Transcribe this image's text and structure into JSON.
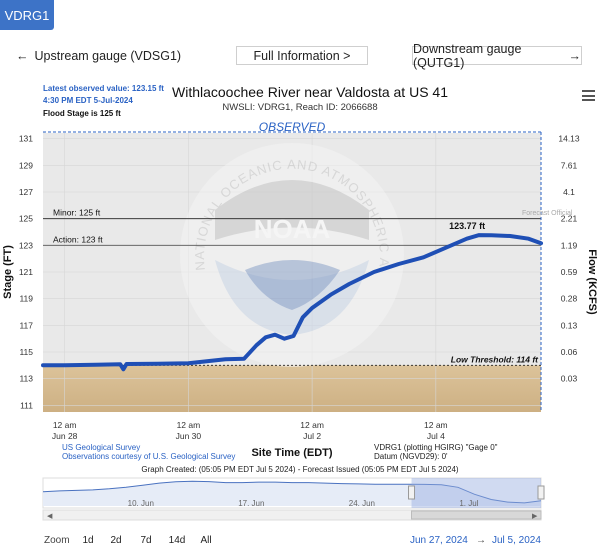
{
  "tab": {
    "label": "VDRG1"
  },
  "nav": {
    "upstream_arrow": "←",
    "upstream_label": "Upstream gauge (VDSG1)",
    "full_info_label": "Full Information >",
    "downstream_label": "Downstream gauge (QUTG1)",
    "downstream_arrow": "→"
  },
  "info": {
    "latest": "Latest observed value: 123.15 ft",
    "latest_time": "4:30 PM EDT 5-Jul-2024",
    "flood_stage": "Flood Stage is 125 ft"
  },
  "header": {
    "title": "Withlacoochee River near Valdosta at US 41",
    "subtitle": "NWSLI: VDRG1, Reach ID: 2066688"
  },
  "chart_data": {
    "type": "line",
    "section_label": "OBSERVED",
    "ylabel_left": "Stage (FT)",
    "ylabel_right": "Flow (KCFS)",
    "xlabel": "Site Time (EDT)",
    "ylim": [
      110.5,
      131.5
    ],
    "left_ticks": [
      "131",
      "129",
      "127",
      "125",
      "123",
      "121",
      "119",
      "117",
      "115",
      "113",
      "111"
    ],
    "right_ticks": [
      "14.13",
      "7.61",
      "4.1",
      "2.21",
      "1.19",
      "0.59",
      "0.28",
      "0.13",
      "0.06",
      "0.03"
    ],
    "right_tick_stage": [
      131,
      129,
      127,
      125,
      123,
      121,
      119,
      117,
      115,
      113
    ],
    "x_ticks": [
      {
        "top": "12 am",
        "bottom": "Jun 28",
        "day": 0
      },
      {
        "top": "12 am",
        "bottom": "Jun 30",
        "day": 2
      },
      {
        "top": "12 am",
        "bottom": "Jul 2",
        "day": 4
      },
      {
        "top": "12 am",
        "bottom": "Jul 4",
        "day": 6
      }
    ],
    "xlim_days": [
      -0.35,
      7.7
    ],
    "thresholds": [
      {
        "label": "Minor: 125 ft",
        "value": 125,
        "color": "#222222"
      },
      {
        "label": "Action: 123 ft",
        "value": 123,
        "color": "#555555"
      },
      {
        "label": "Low Threshold: 114 ft",
        "value": 114,
        "color": "#222222"
      }
    ],
    "peak_label": "123.77 ft",
    "peak": [
      6.7,
      123.77
    ],
    "right_corner_text": "Forecast Official",
    "watermark": "NATIONAL OCEANIC AND ATMOSPHERIC ADMINISTRATION · U.S. DEPARTMENT OF COMMERCE",
    "watermark_logo": "NOAA",
    "series": [
      {
        "name": "Observed stage",
        "color": "#1f4fb5",
        "points": [
          [
            -0.35,
            114.0
          ],
          [
            0.0,
            114.0
          ],
          [
            0.5,
            114.05
          ],
          [
            0.9,
            114.08
          ],
          [
            0.95,
            113.7
          ],
          [
            1.0,
            114.1
          ],
          [
            1.5,
            114.12
          ],
          [
            2.0,
            114.15
          ],
          [
            2.3,
            114.3
          ],
          [
            2.6,
            114.45
          ],
          [
            2.9,
            114.5
          ],
          [
            3.1,
            115.5
          ],
          [
            3.25,
            116.1
          ],
          [
            3.4,
            116.3
          ],
          [
            3.55,
            116.0
          ],
          [
            3.7,
            116.2
          ],
          [
            3.85,
            117.6
          ],
          [
            4.0,
            118.3
          ],
          [
            4.3,
            119.3
          ],
          [
            4.6,
            120.1
          ],
          [
            5.0,
            121.0
          ],
          [
            5.4,
            121.6
          ],
          [
            5.8,
            122.1
          ],
          [
            6.2,
            122.9
          ],
          [
            6.5,
            123.5
          ],
          [
            6.7,
            123.77
          ],
          [
            6.9,
            123.75
          ],
          [
            7.2,
            123.7
          ],
          [
            7.5,
            123.5
          ],
          [
            7.7,
            123.15
          ]
        ]
      }
    ]
  },
  "footer": {
    "usgs_line1": "US Geological Survey",
    "usgs_line2": "Observations courtesy of U.S. Geological Survey",
    "gauge_info_line1": "VDRG1 (plotting HGIRG) \"Gage 0\"",
    "gauge_info_line2": "Datum (NGVD29): 0'",
    "graph_created": "Graph Created: (05:05 PM EDT Jul 5 2024) - Forecast Issued (05:05 PM EDT Jul 5 2024)"
  },
  "navigator": {
    "labels": [
      "10. Jun",
      "17. Jun",
      "24. Jun",
      "1. Jul"
    ],
    "series": [
      0.55,
      0.58,
      0.6,
      0.62,
      0.66,
      0.72,
      0.8,
      0.88,
      0.93,
      0.95,
      0.94,
      0.9,
      0.9,
      0.92,
      0.92,
      0.9,
      0.9,
      0.88,
      0.86,
      0.85,
      0.84,
      0.84,
      0.84,
      0.83,
      0.82,
      0.72,
      0.45,
      0.25,
      0.15,
      0.12,
      0.2
    ],
    "selection": [
      0.74,
      1.0
    ]
  },
  "zoom": {
    "label": "Zoom",
    "buttons": [
      "1d",
      "2d",
      "7d",
      "14d",
      "All"
    ],
    "from": "Jun 27, 2024",
    "arrow": "→",
    "to": "Jul 5, 2024"
  },
  "colors": {
    "tab": "#3d73c7",
    "link_blue": "#2a62c4",
    "stage_line": "#1f4fb5",
    "low_band": "#dcc39a",
    "plot_bg": "#e9e9e9"
  }
}
